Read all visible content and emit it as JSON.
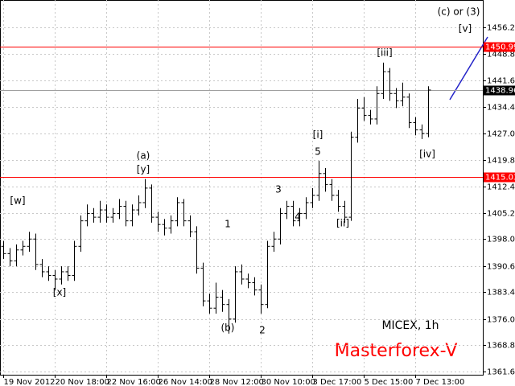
{
  "chart_data": {
    "type": "ohlc",
    "categories": [
      "19 Nov 2012",
      null,
      null,
      null,
      null,
      null,
      null,
      null,
      "20 Nov 18:00",
      null,
      null,
      null,
      null,
      null,
      null,
      null,
      "22 Nov 16:00",
      null,
      null,
      null,
      null,
      null,
      null,
      null,
      "26 Nov 14:00",
      null,
      null,
      null,
      null,
      null,
      null,
      null,
      "28 Nov 12:00",
      null,
      null,
      null,
      null,
      null,
      null,
      null,
      "30 Nov 10:00",
      null,
      null,
      null,
      null,
      null,
      null,
      null,
      "3 Dec 17:00",
      null,
      null,
      null,
      null,
      null,
      null,
      null,
      "5 Dec 15:00",
      null,
      null,
      null,
      null,
      null,
      null,
      null,
      "7 Dec 13:00",
      null,
      null
    ],
    "open": [
      1396,
      1394,
      1392,
      1395,
      1396,
      1398,
      1391,
      1389,
      1388,
      1387,
      1389,
      1388,
      1396,
      1403,
      1405,
      1404,
      1406,
      1404,
      1405,
      1407,
      1403,
      1406,
      1408,
      1412,
      1404,
      1402,
      1401,
      1403,
      1408,
      1403,
      1400,
      1390,
      1381,
      1379,
      1382,
      1380,
      1376,
      1389,
      1387,
      1386,
      1384,
      1380,
      1396,
      1398,
      1405,
      1407,
      1403,
      1405,
      1408,
      1410,
      1416,
      1413,
      1410,
      1407,
      1404,
      1426,
      1434,
      1432,
      1431,
      1438,
      1444,
      1438,
      1436,
      1437,
      1430,
      1428,
      1427
    ],
    "high": [
      1397.5,
      1395.5,
      1396.5,
      1397.5,
      1400,
      1399.5,
      1392.5,
      1390.5,
      1389.5,
      1390.5,
      1390.5,
      1397.5,
      1404.5,
      1407.5,
      1406.5,
      1408.5,
      1407.5,
      1406.5,
      1409,
      1408.5,
      1407.5,
      1410,
      1414.5,
      1413,
      1405.5,
      1403.5,
      1404.5,
      1409.5,
      1409,
      1404.5,
      1401.5,
      1391.5,
      1383,
      1386,
      1384,
      1381.5,
      1390.5,
      1391,
      1388.5,
      1387.5,
      1385.5,
      1397.5,
      1400,
      1406.5,
      1408.5,
      1408.5,
      1406.5,
      1409.5,
      1412,
      1419.5,
      1417.5,
      1414.5,
      1411.5,
      1408.5,
      1427.5,
      1436.5,
      1437,
      1433.5,
      1440,
      1446.5,
      1445,
      1439.5,
      1441,
      1438,
      1431.5,
      1429.5,
      1440
    ],
    "low": [
      1392.5,
      1390.5,
      1390.5,
      1393.5,
      1394.5,
      1389.5,
      1387.5,
      1386.5,
      1384,
      1385.5,
      1386.5,
      1386.5,
      1394.5,
      1401.5,
      1402.5,
      1402.5,
      1402.5,
      1402.5,
      1403.5,
      1401.5,
      1401.5,
      1404.5,
      1406.5,
      1402.5,
      1400,
      1399,
      1399.5,
      1401.5,
      1401.5,
      1398.5,
      1388.5,
      1379.5,
      1377.5,
      1377.5,
      1378,
      1372,
      1375,
      1385.5,
      1384.5,
      1382.5,
      1377.5,
      1379,
      1394.5,
      1396.5,
      1403.5,
      1401.5,
      1401.5,
      1403.5,
      1406.5,
      1408.5,
      1411,
      1408.5,
      1405.5,
      1402.5,
      1403,
      1424.5,
      1430.5,
      1429.5,
      1429.5,
      1436.5,
      1436,
      1434,
      1434.5,
      1428.5,
      1426.5,
      1425.5,
      1426
    ],
    "close": [
      1394,
      1392,
      1395,
      1396,
      1398,
      1391,
      1389,
      1388,
      1387,
      1389,
      1388,
      1396,
      1403,
      1405,
      1404,
      1406,
      1404,
      1405,
      1407,
      1403,
      1406,
      1408,
      1412,
      1404,
      1402,
      1401,
      1403,
      1408,
      1403,
      1400,
      1390,
      1381,
      1379,
      1382,
      1380,
      1376,
      1389,
      1387,
      1386,
      1384,
      1380,
      1396,
      1398,
      1405,
      1407,
      1403,
      1405,
      1408,
      1410,
      1416,
      1413,
      1410,
      1407,
      1404,
      1426,
      1434,
      1432,
      1431,
      1438,
      1444,
      1438,
      1436,
      1437,
      1430,
      1428,
      1427,
      1438.96
    ],
    "color": "#000000",
    "ylim": [
      1360.7,
      1463.7
    ],
    "yticks": [
      {
        "value": 1456.2,
        "label": "1456.20"
      },
      {
        "value": 1448.8,
        "label": "1448.80"
      },
      {
        "value": 1441.6,
        "label": "1441.60"
      },
      {
        "value": 1434.4,
        "label": "1434.40"
      },
      {
        "value": 1427,
        "label": "1427.00"
      },
      {
        "value": 1419.8,
        "label": "1419.80"
      },
      {
        "value": 1412.4,
        "label": "1412.40"
      },
      {
        "value": 1405.2,
        "label": "1405.20"
      },
      {
        "value": 1398,
        "label": "1398.00"
      },
      {
        "value": 1390.6,
        "label": "1390.60"
      },
      {
        "value": 1383.4,
        "label": "1383.40"
      },
      {
        "value": 1376,
        "label": "1376.00"
      },
      {
        "value": 1368.8,
        "label": "1368.80"
      },
      {
        "value": 1361.6,
        "label": "1361.60"
      }
    ],
    "grid": true,
    "hlines": [
      {
        "value": 1450.99,
        "color": "#ff0000"
      },
      {
        "value": 1415.03,
        "color": "#ff0000"
      },
      {
        "value": 1438.96,
        "color": "#a0a0a0"
      }
    ],
    "annotations": [
      "[w]",
      "[x]",
      "(a)",
      "[y]",
      "(b)",
      "1",
      "2",
      "3",
      "4",
      "5",
      "[i]",
      "[ii]",
      "[iii]",
      "[iv]",
      "[v]",
      "(c) or (3)"
    ],
    "symbol": "MICEX, 1h",
    "watermark": "Masterforex-V"
  }
}
